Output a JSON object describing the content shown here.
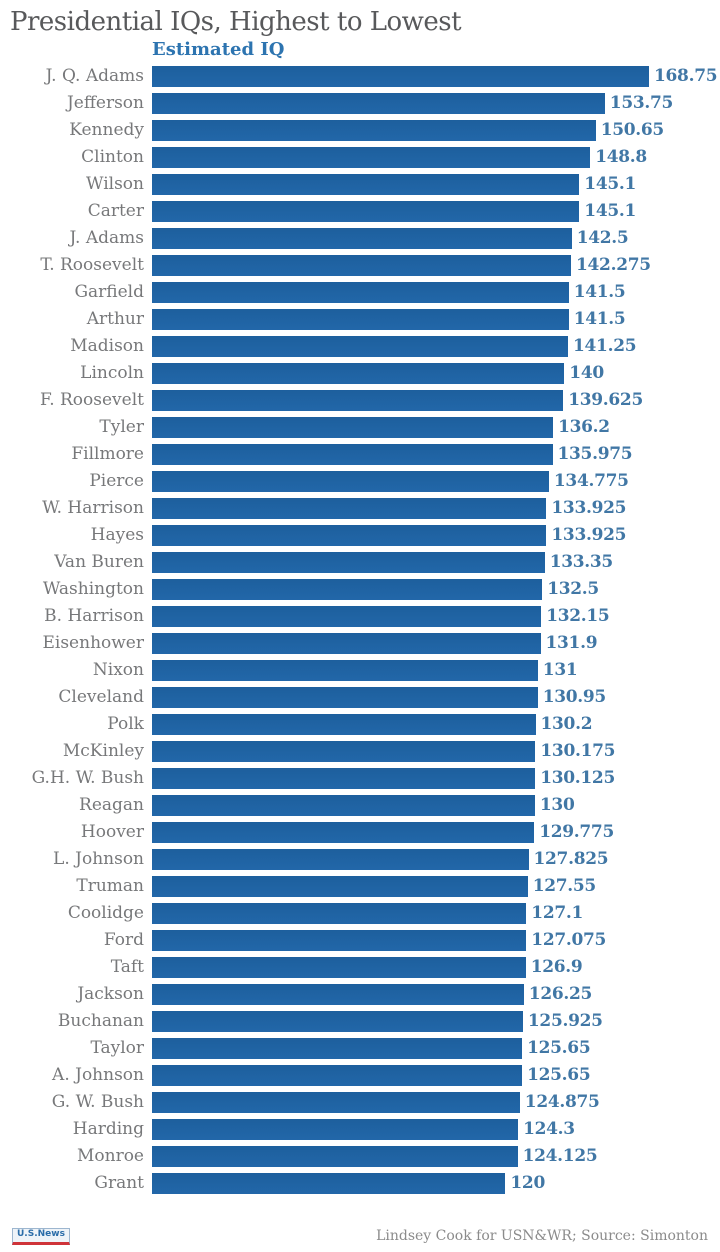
{
  "title": "Presidential IQs, Highest to Lowest",
  "legend": "Estimated IQ",
  "footer": {
    "logo": "U.S.News",
    "credit": "Lindsey Cook for USN&WR; Source: Simonton"
  },
  "colors": {
    "bar": "#1f64a4",
    "value_label": "#4177a5",
    "name_label": "#77787a",
    "title": "#58595b",
    "legend": "#2d74b0",
    "credit": "#8b8b8b",
    "logo_blue": "#2a6ca8",
    "logo_red": "#cf3339"
  },
  "chart_data": {
    "type": "bar",
    "orientation": "horizontal",
    "title": "Presidential IQs, Highest to Lowest",
    "series_label": "Estimated IQ",
    "xlabel": "Estimated IQ",
    "ylabel": "",
    "xlim": [
      0,
      168.75
    ],
    "grid": false,
    "legend_position": "top",
    "value_labels": "end-of-bar",
    "sort": "descending",
    "categories": [
      "J. Q. Adams",
      "Jefferson",
      "Kennedy",
      "Clinton",
      "Wilson",
      "Carter",
      "J. Adams",
      "T. Roosevelt",
      "Garfield",
      "Arthur",
      "Madison",
      "Lincoln",
      "F. Roosevelt",
      "Tyler",
      "Fillmore",
      "Pierce",
      "W. Harrison",
      "Hayes",
      "Van Buren",
      "Washington",
      "B. Harrison",
      "Eisenhower",
      "Nixon",
      "Cleveland",
      "Polk",
      "McKinley",
      "G.H. W. Bush",
      "Reagan",
      "Hoover",
      "L. Johnson",
      "Truman",
      "Coolidge",
      "Ford",
      "Taft",
      "Jackson",
      "Buchanan",
      "Taylor",
      "A. Johnson",
      "G. W. Bush",
      "Harding",
      "Monroe",
      "Grant"
    ],
    "values": [
      168.75,
      153.75,
      150.65,
      148.8,
      145.1,
      145.1,
      142.5,
      142.275,
      141.5,
      141.5,
      141.25,
      140,
      139.625,
      136.2,
      135.975,
      134.775,
      133.925,
      133.925,
      133.35,
      132.5,
      132.15,
      131.9,
      131,
      130.95,
      130.2,
      130.175,
      130.125,
      130,
      129.775,
      127.825,
      127.55,
      127.1,
      127.075,
      126.9,
      126.25,
      125.925,
      125.65,
      125.65,
      124.875,
      124.3,
      124.125,
      120
    ],
    "display_values": [
      "168.75",
      "153.75",
      "150.65",
      "148.8",
      "145.1",
      "145.1",
      "142.5",
      "142.275",
      "141.5",
      "141.5",
      "141.25",
      "140",
      "139.625",
      "136.2",
      "135.975",
      "134.775",
      "133.925",
      "133.925",
      "133.35",
      "132.5",
      "132.15",
      "131.9",
      "131",
      "130.95",
      "130.2",
      "130.175",
      "130.125",
      "130",
      "129.775",
      "127.825",
      "127.55",
      "127.1",
      "127.075",
      "126.9",
      "126.25",
      "125.925",
      "125.65",
      "125.65",
      "124.875",
      "124.3",
      "124.125",
      "120"
    ]
  }
}
